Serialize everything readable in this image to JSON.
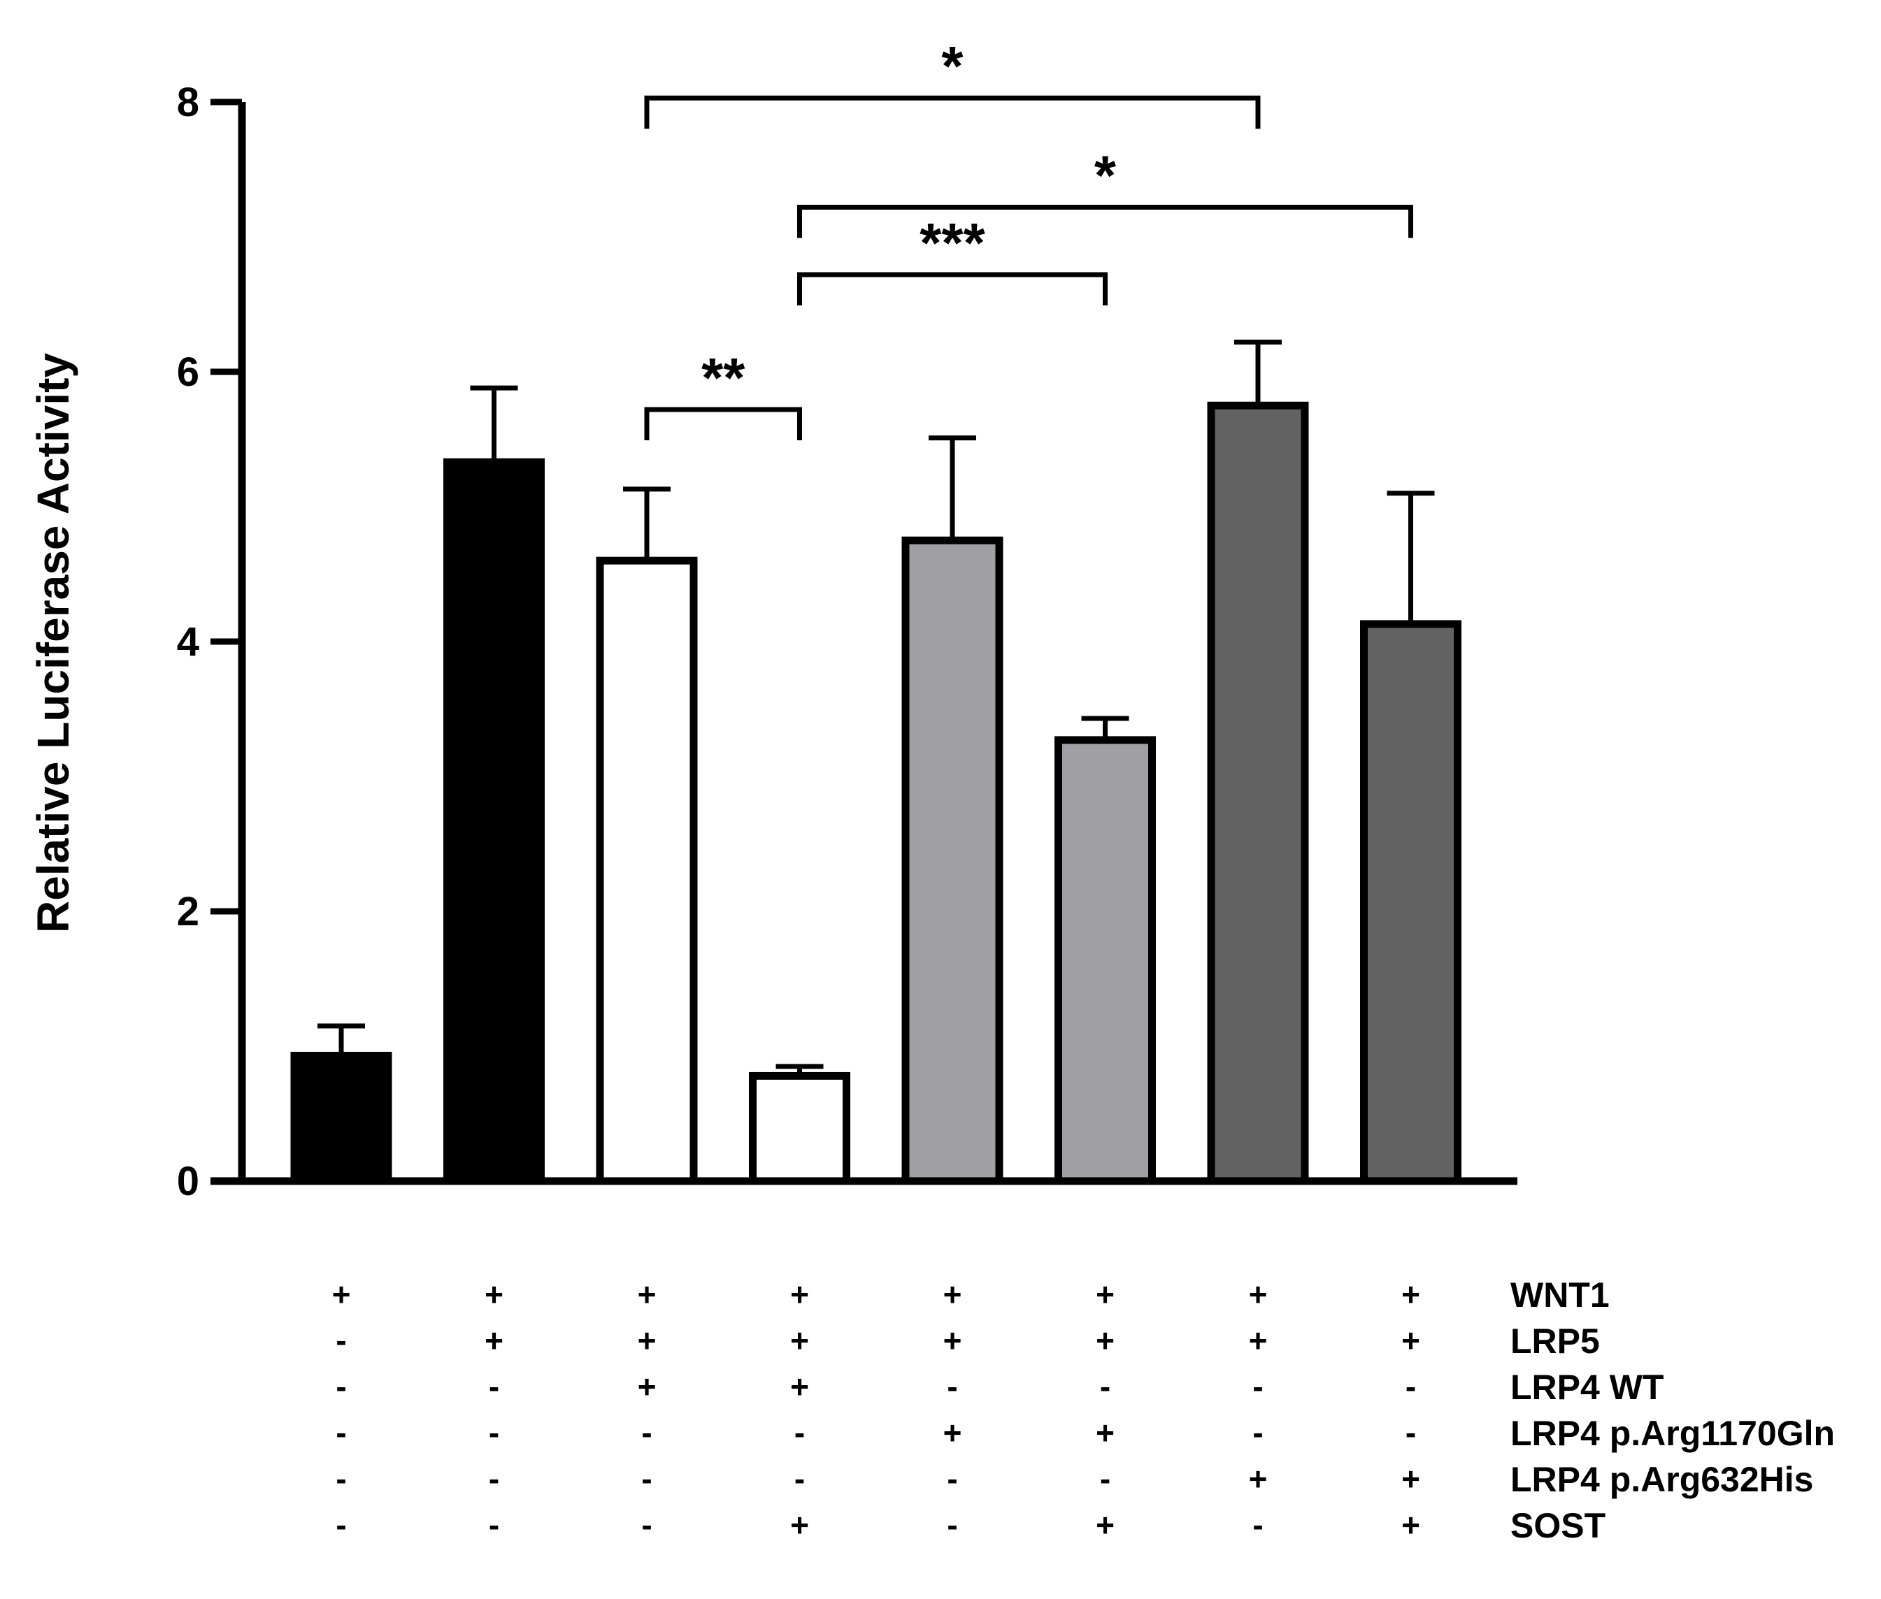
{
  "chart_data": {
    "type": "bar",
    "title": "",
    "xlabel": "",
    "ylabel": "Relative Luciferase Activity",
    "ylim": [
      0,
      8
    ],
    "yticks": [
      0,
      2,
      4,
      6,
      8
    ],
    "grid": false,
    "bars": [
      {
        "value": 0.93,
        "error": 0.22,
        "fill": "#000000"
      },
      {
        "value": 5.33,
        "error": 0.55,
        "fill": "#000000"
      },
      {
        "value": 4.6,
        "error": 0.53,
        "fill": "#ffffff"
      },
      {
        "value": 0.78,
        "error": 0.07,
        "fill": "#ffffff"
      },
      {
        "value": 4.75,
        "error": 0.76,
        "fill": "#a09fa4"
      },
      {
        "value": 3.27,
        "error": 0.16,
        "fill": "#a09fa4"
      },
      {
        "value": 5.75,
        "error": 0.47,
        "fill": "#626262"
      },
      {
        "value": 4.13,
        "error": 0.97,
        "fill": "#626262"
      }
    ],
    "conditions": [
      {
        "label": "WNT1",
        "marks": [
          "+",
          "+",
          "+",
          "+",
          "+",
          "+",
          "+",
          "+"
        ]
      },
      {
        "label": "LRP5",
        "marks": [
          "-",
          "+",
          "+",
          "+",
          "+",
          "+",
          "+",
          "+"
        ]
      },
      {
        "label": "LRP4 WT",
        "marks": [
          "-",
          "-",
          "+",
          "+",
          "-",
          "-",
          "-",
          "-"
        ]
      },
      {
        "label": "LRP4 p.Arg1170Gln",
        "marks": [
          "-",
          "-",
          "-",
          "-",
          "+",
          "+",
          "-",
          "-"
        ]
      },
      {
        "label": "LRP4 p.Arg632His",
        "marks": [
          "-",
          "-",
          "-",
          "-",
          "-",
          "-",
          "+",
          "+"
        ]
      },
      {
        "label": "SOST",
        "marks": [
          "-",
          "-",
          "-",
          "+",
          "-",
          "+",
          "-",
          "+"
        ]
      }
    ],
    "significance": [
      {
        "from": 3,
        "to": 4,
        "label": "**",
        "level": 5.72
      },
      {
        "from": 4,
        "to": 6,
        "label": "***",
        "level": 6.72
      },
      {
        "from": 4,
        "to": 8,
        "label": "*",
        "level": 7.22
      },
      {
        "from": 3,
        "to": 7,
        "label": "*",
        "level": 8.03
      }
    ]
  }
}
